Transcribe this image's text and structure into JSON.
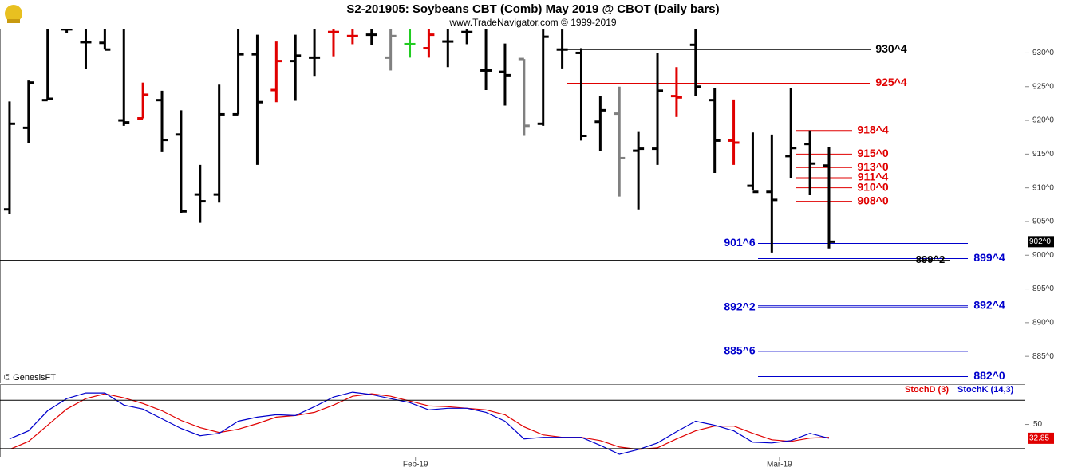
{
  "chart_data": [
    {
      "type": "ohlc",
      "title": "S2-201905:  Soybeans CBT (Comb) May 2019 @ CBOT  (Daily bars)",
      "subtitle": "www.TradeNavigator.com © 1999-2019",
      "credit": "© GenesisFT",
      "open": [
        906.8,
        918.9,
        923,
        933.5,
        931.6,
        931.5,
        920,
        920.3,
        923,
        917.9,
        909,
        909,
        920.9,
        929.8,
        924.5,
        928.8,
        929.3,
        933.1,
        932.5,
        932.7,
        929.3,
        931.3,
        930.7,
        931.7,
        933.1,
        927.4,
        927.2,
        929.1,
        919.5,
        930.5,
        930,
        919.8,
        921,
        915.5,
        915.8,
        923.6,
        931.2,
        923,
        917,
        910.3,
        909.4,
        914.7,
        916.5,
        913.3
      ],
      "high": [
        922.8,
        925.9,
        934,
        934,
        934,
        934,
        934,
        925.6,
        924.4,
        921.5,
        913.4,
        925.3,
        934,
        932.7,
        931.7,
        932.7,
        934,
        934,
        934,
        934,
        934,
        934,
        934,
        934,
        934,
        934,
        931.4,
        929.1,
        934,
        934,
        930.7,
        923.6,
        925,
        918.4,
        930,
        927.9,
        933.6,
        924.8,
        923.1,
        918.2,
        917.9,
        924.8,
        918.5,
        916.1
      ],
      "low": [
        906.1,
        916.7,
        923,
        933,
        927.6,
        930.5,
        919.2,
        920.3,
        915.3,
        906.3,
        904.8,
        907.8,
        920.9,
        913.4,
        922.7,
        922.9,
        926.6,
        929.5,
        931.3,
        931.2,
        927.4,
        929.3,
        929.3,
        927.9,
        931.3,
        924.5,
        922.2,
        917.7,
        919.2,
        927.7,
        917,
        915.5,
        908.7,
        906.8,
        913.4,
        920.5,
        923.6,
        912.2,
        913.4,
        909.6,
        900.4,
        911.5,
        908.9,
        901
      ],
      "close": [
        919.5,
        925.6,
        923.2,
        933.5,
        931.6,
        930.5,
        919.7,
        923.8,
        917.1,
        906.5,
        908,
        920.9,
        929.8,
        922.7,
        928.8,
        929.6,
        929.3,
        933.1,
        932.5,
        932.7,
        932.5,
        931.3,
        932.7,
        931.7,
        933.1,
        927.4,
        926.7,
        919.2,
        932.4,
        930.5,
        917.7,
        921.5,
        914.4,
        915.8,
        924.4,
        923.4,
        925,
        917,
        916.7,
        909.4,
        908.2,
        915.9,
        913.6,
        902
      ],
      "colors": [
        "#000",
        "#000",
        "#000",
        "#000",
        "#000",
        "#000",
        "#000",
        "#e00000",
        "#000",
        "#000",
        "#000",
        "#000",
        "#000",
        "#000",
        "#e00000",
        "#000",
        "#000",
        "#e00000",
        "#e00000",
        "#000",
        "#808080",
        "#22cc22",
        "#e00000",
        "#000",
        "#000",
        "#000",
        "#000",
        "#808080",
        "#000",
        "#000",
        "#000",
        "#000",
        "#808080",
        "#000",
        "#000",
        "#e00000",
        "#000",
        "#000",
        "#e00000",
        "#000",
        "#000",
        "#000",
        "#000",
        "#000"
      ],
      "xlim": [
        -0.5,
        53.3
      ],
      "ylim": [
        881,
        933.6
      ],
      "yticks": [
        {
          "value": 885,
          "label": "885^0"
        },
        {
          "value": 890,
          "label": "890^0"
        },
        {
          "value": 895,
          "label": "895^0"
        },
        {
          "value": 900,
          "label": "900^0"
        },
        {
          "value": 905,
          "label": "905^0"
        },
        {
          "value": 910,
          "label": "910^0"
        },
        {
          "value": 915,
          "label": "915^0"
        },
        {
          "value": 920,
          "label": "920^0"
        },
        {
          "value": 925,
          "label": "925^0"
        },
        {
          "value": 930,
          "label": "930^0"
        }
      ],
      "last_price": {
        "value": 902,
        "label": "902^0"
      },
      "levels": [
        {
          "value": 930.5,
          "label": "930^4",
          "color": "#000"
        },
        {
          "value": 925.5,
          "label": "925^4",
          "color": "#e00000"
        },
        {
          "value": 918.5,
          "label": "918^4",
          "color": "#e00000"
        },
        {
          "value": 915,
          "label": "915^0",
          "color": "#e00000"
        },
        {
          "value": 913,
          "label": "913^0",
          "color": "#e00000"
        },
        {
          "value": 911.5,
          "label": "911^4",
          "color": "#e00000"
        },
        {
          "value": 910,
          "label": "910^0",
          "color": "#e00000"
        },
        {
          "value": 908,
          "label": "908^0",
          "color": "#e00000"
        },
        {
          "value": 901.75,
          "label": "901^6",
          "color": "#0000cc"
        },
        {
          "value": 899.5,
          "label": "899^4",
          "color": "#0000cc"
        },
        {
          "value": 899.25,
          "label": "899^2",
          "color": "#000"
        },
        {
          "value": 892.25,
          "label": "892^2",
          "color": "#0000cc"
        },
        {
          "value": 892.5,
          "label": "892^4",
          "color": "#0000cc"
        },
        {
          "value": 885.75,
          "label": "885^6",
          "color": "#0000cc"
        },
        {
          "value": 882,
          "label": "882^0",
          "color": "#0000cc"
        }
      ]
    },
    {
      "type": "line",
      "series": [
        {
          "name": "StochD (3)",
          "color": "#e00000",
          "values": [
            19,
            29,
            49,
            69,
            82,
            88,
            83,
            76,
            67,
            55,
            46,
            40,
            44,
            51,
            59,
            61,
            65,
            74,
            85,
            88,
            85,
            79,
            73,
            72,
            70,
            68,
            62,
            47,
            37,
            34,
            34,
            30,
            22,
            19,
            21,
            32,
            42,
            48,
            48,
            39,
            31,
            29,
            33,
            34
          ]
        },
        {
          "name": "StochK (14,3)",
          "color": "#0000cc",
          "values": [
            32,
            42,
            67,
            82,
            89,
            89,
            74,
            69,
            57,
            45,
            36,
            39,
            54,
            59,
            62,
            61,
            72,
            84,
            90,
            87,
            82,
            77,
            68,
            70,
            70,
            65,
            54,
            32,
            34,
            34,
            34,
            24,
            13,
            19,
            27,
            41,
            54,
            49,
            42,
            28,
            27,
            30,
            39,
            32.85
          ]
        }
      ],
      "xlim": [
        -0.5,
        53.3
      ],
      "ylim": [
        9,
        99
      ],
      "yticks": [
        50
      ],
      "bands": [
        20,
        80
      ],
      "last_value": 32.85,
      "xticks": [
        {
          "value": 21.3,
          "label": "Feb-19"
        },
        {
          "value": 40.4,
          "label": "Mar-19"
        }
      ]
    }
  ]
}
